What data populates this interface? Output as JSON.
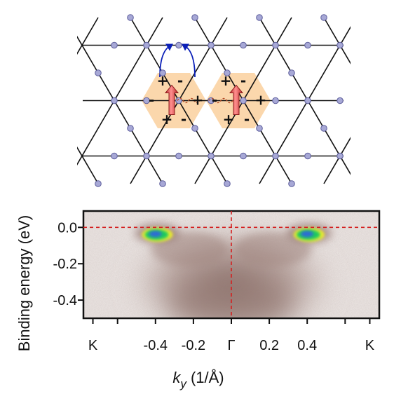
{
  "lattice_panel": {
    "signs": [
      "+",
      "-",
      "-",
      "+",
      "+",
      "-",
      "+",
      "-",
      "-",
      "+",
      "+",
      "-"
    ],
    "colors": {
      "edge": "#111111",
      "node_fill": "#a7a8d6",
      "node_stroke": "#5d5e9c",
      "hexagon_fill": "#fbd7ac",
      "hop_arrow": "#0a1fb8",
      "spin_arrow": "#e34848",
      "wavy_line": "#b8502a"
    }
  },
  "chart_data": {
    "type": "heatmap",
    "xlabel_symbol": "k",
    "xlabel_subscript": "y",
    "xlabel_unit": " (1/Å)",
    "ylabel": "Binding energy (eV)",
    "xlim": [
      -0.78,
      0.78
    ],
    "ylim": [
      -0.5,
      0.09
    ],
    "x_ticks": [
      {
        "value": -0.73,
        "label": "K"
      },
      {
        "value": -0.6,
        "label": ""
      },
      {
        "value": -0.4,
        "label": "-0.4"
      },
      {
        "value": -0.2,
        "label": "-0.2"
      },
      {
        "value": 0.0,
        "label": "Γ"
      },
      {
        "value": 0.2,
        "label": "0.2"
      },
      {
        "value": 0.4,
        "label": "0.4"
      },
      {
        "value": 0.6,
        "label": ""
      },
      {
        "value": 0.73,
        "label": "K"
      }
    ],
    "y_ticks": [
      {
        "value": 0.0,
        "label": "0.0"
      },
      {
        "value": -0.2,
        "label": "-0.2"
      },
      {
        "value": -0.4,
        "label": "-0.4"
      }
    ],
    "reference_lines": [
      {
        "axis": "y",
        "value": 0.0,
        "style": "dashed",
        "color": "#d42020"
      },
      {
        "axis": "x",
        "value": 0.0,
        "style": "dashed",
        "color": "#d42020"
      }
    ],
    "intensity_features": [
      {
        "kind": "hot-spot",
        "x": -0.39,
        "y": -0.04,
        "level": "max"
      },
      {
        "kind": "hot-spot",
        "x": 0.41,
        "y": -0.04,
        "level": "max"
      },
      {
        "kind": "broad-band",
        "x": 0.0,
        "y": -0.3,
        "level": "medium"
      }
    ],
    "colormap": [
      "#ffffff",
      "#d8cdc8",
      "#9a7e78",
      "#2d6bd6",
      "#1bc95e",
      "#f3f02a"
    ]
  }
}
